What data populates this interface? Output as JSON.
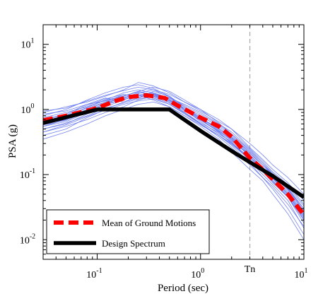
{
  "chart_data": {
    "type": "line",
    "title": "",
    "xlabel": "Period (sec)",
    "ylabel": "PSA (g)",
    "x_scale": "log",
    "y_scale": "log",
    "xlim": [
      0.03,
      10
    ],
    "ylim": [
      0.005,
      20
    ],
    "x_ticks": [
      {
        "value": 0.1,
        "base": "10",
        "exp": "-1"
      },
      {
        "value": 1,
        "base": "10",
        "exp": "0"
      },
      {
        "value": 10,
        "base": "10",
        "exp": "1"
      }
    ],
    "y_ticks": [
      {
        "value": 10,
        "base": "10",
        "exp": "1"
      },
      {
        "value": 1,
        "base": "10",
        "exp": "0"
      },
      {
        "value": 0.1,
        "base": "10",
        "exp": "-1"
      },
      {
        "value": 0.01,
        "base": "10",
        "exp": "-2"
      }
    ],
    "annotations": [
      {
        "text": "Tn",
        "x": 3.0,
        "style": "dashed-vertical-line",
        "color": "#aaaaaa"
      }
    ],
    "legend": {
      "placement": "bottom-left",
      "entries": [
        {
          "label": "Mean of Ground Motions",
          "color": "#ff0000",
          "style": "dashed"
        },
        {
          "label": "Design Spectrum",
          "color": "#000000",
          "style": "solid"
        }
      ]
    },
    "series": [
      {
        "name": "Mean of Ground Motions",
        "color": "#ff0000",
        "style": "dashed",
        "x": [
          0.03,
          0.05,
          0.1,
          0.15,
          0.2,
          0.3,
          0.45,
          0.6,
          1.0,
          1.5,
          2.0,
          3.0,
          4.0,
          5.0,
          7.0,
          10.0
        ],
        "y": [
          0.68,
          0.8,
          1.05,
          1.35,
          1.55,
          1.65,
          1.5,
          1.15,
          0.75,
          0.55,
          0.38,
          0.18,
          0.12,
          0.085,
          0.05,
          0.024
        ]
      },
      {
        "name": "Design Spectrum",
        "color": "#000000",
        "style": "solid",
        "x": [
          0.03,
          0.1,
          0.5,
          1.0,
          2.0,
          3.0,
          5.0,
          10.0
        ],
        "y": [
          0.62,
          1.0,
          1.0,
          0.47,
          0.23,
          0.155,
          0.095,
          0.045
        ]
      }
    ],
    "ground_motions": {
      "color": "#6677ee",
      "x": [
        0.03,
        0.05,
        0.08,
        0.12,
        0.18,
        0.25,
        0.35,
        0.5,
        0.7,
        1.0,
        1.5,
        2.0,
        3.0,
        4.0,
        5.0,
        7.0,
        10.0
      ],
      "records": [
        [
          0.55,
          0.65,
          0.9,
          1.2,
          1.6,
          1.9,
          1.7,
          1.3,
          0.9,
          0.6,
          0.4,
          0.28,
          0.15,
          0.09,
          0.06,
          0.03,
          0.012
        ],
        [
          0.8,
          1.0,
          1.4,
          1.8,
          2.2,
          2.4,
          2.1,
          1.6,
          1.1,
          0.8,
          0.55,
          0.4,
          0.22,
          0.14,
          0.1,
          0.06,
          0.03
        ],
        [
          0.45,
          0.55,
          0.7,
          0.9,
          1.1,
          1.4,
          1.6,
          1.4,
          1.0,
          0.7,
          0.45,
          0.3,
          0.18,
          0.12,
          0.08,
          0.045,
          0.02
        ],
        [
          0.7,
          0.85,
          1.2,
          1.5,
          1.3,
          1.6,
          1.8,
          1.5,
          1.2,
          0.9,
          0.6,
          0.45,
          0.25,
          0.16,
          0.11,
          0.07,
          0.035
        ],
        [
          0.35,
          0.45,
          0.6,
          0.8,
          1.0,
          1.2,
          1.3,
          1.1,
          0.8,
          0.55,
          0.35,
          0.22,
          0.12,
          0.08,
          0.05,
          0.025,
          0.01
        ],
        [
          0.9,
          1.1,
          1.3,
          1.6,
          2.0,
          2.6,
          2.3,
          1.8,
          1.3,
          0.95,
          0.65,
          0.5,
          0.3,
          0.2,
          0.14,
          0.09,
          0.05
        ],
        [
          0.6,
          0.7,
          1.0,
          1.3,
          1.7,
          1.5,
          1.9,
          1.6,
          1.0,
          0.65,
          0.42,
          0.32,
          0.16,
          0.1,
          0.07,
          0.04,
          0.015
        ],
        [
          0.5,
          0.6,
          0.85,
          1.1,
          1.4,
          1.7,
          1.5,
          1.2,
          0.85,
          0.6,
          0.38,
          0.26,
          0.14,
          0.09,
          0.065,
          0.035,
          0.016
        ],
        [
          0.75,
          0.9,
          1.1,
          1.4,
          1.8,
          2.0,
          1.8,
          1.4,
          1.05,
          0.75,
          0.5,
          0.36,
          0.2,
          0.13,
          0.09,
          0.055,
          0.025
        ],
        [
          0.4,
          0.5,
          0.75,
          1.0,
          1.3,
          1.5,
          1.7,
          1.5,
          1.1,
          0.75,
          0.48,
          0.34,
          0.19,
          0.12,
          0.085,
          0.05,
          0.022
        ],
        [
          0.65,
          0.8,
          1.05,
          1.3,
          1.5,
          1.8,
          2.0,
          1.7,
          1.3,
          1.0,
          0.7,
          0.5,
          0.26,
          0.17,
          0.12,
          0.075,
          0.04
        ],
        [
          0.55,
          0.7,
          0.95,
          1.25,
          1.55,
          1.65,
          1.4,
          1.1,
          0.8,
          0.58,
          0.4,
          0.29,
          0.17,
          0.11,
          0.075,
          0.045,
          0.018
        ],
        [
          0.85,
          0.95,
          1.2,
          1.35,
          1.6,
          1.9,
          2.2,
          1.9,
          1.4,
          1.0,
          0.62,
          0.42,
          0.23,
          0.15,
          0.1,
          0.06,
          0.028
        ],
        [
          0.5,
          0.62,
          0.8,
          1.05,
          1.25,
          1.45,
          1.55,
          1.25,
          0.9,
          0.62,
          0.44,
          0.31,
          0.18,
          0.12,
          0.08,
          0.048,
          0.021
        ],
        [
          0.6,
          0.75,
          1.0,
          1.2,
          1.45,
          1.75,
          1.6,
          1.3,
          0.95,
          0.68,
          0.46,
          0.33,
          0.2,
          0.13,
          0.09,
          0.052,
          0.024
        ],
        [
          0.7,
          0.82,
          1.15,
          1.45,
          1.7,
          1.6,
          1.75,
          1.45,
          1.05,
          0.72,
          0.5,
          0.37,
          0.21,
          0.14,
          0.1,
          0.062,
          0.03
        ],
        [
          0.45,
          0.58,
          0.78,
          0.98,
          1.2,
          1.35,
          1.45,
          1.2,
          0.88,
          0.6,
          0.4,
          0.3,
          0.17,
          0.115,
          0.078,
          0.046,
          0.02
        ],
        [
          0.95,
          1.05,
          1.35,
          1.65,
          1.95,
          2.2,
          2.0,
          1.55,
          1.15,
          0.85,
          0.58,
          0.42,
          0.24,
          0.15,
          0.105,
          0.065,
          0.033
        ],
        [
          0.58,
          0.68,
          0.92,
          1.18,
          1.42,
          1.62,
          1.72,
          1.38,
          0.98,
          0.7,
          0.47,
          0.35,
          0.19,
          0.125,
          0.088,
          0.05,
          0.023
        ],
        [
          0.62,
          0.78,
          1.08,
          1.38,
          1.62,
          1.85,
          1.65,
          1.35,
          1.0,
          0.73,
          0.52,
          0.38,
          0.22,
          0.14,
          0.095,
          0.058,
          0.027
        ]
      ]
    }
  }
}
